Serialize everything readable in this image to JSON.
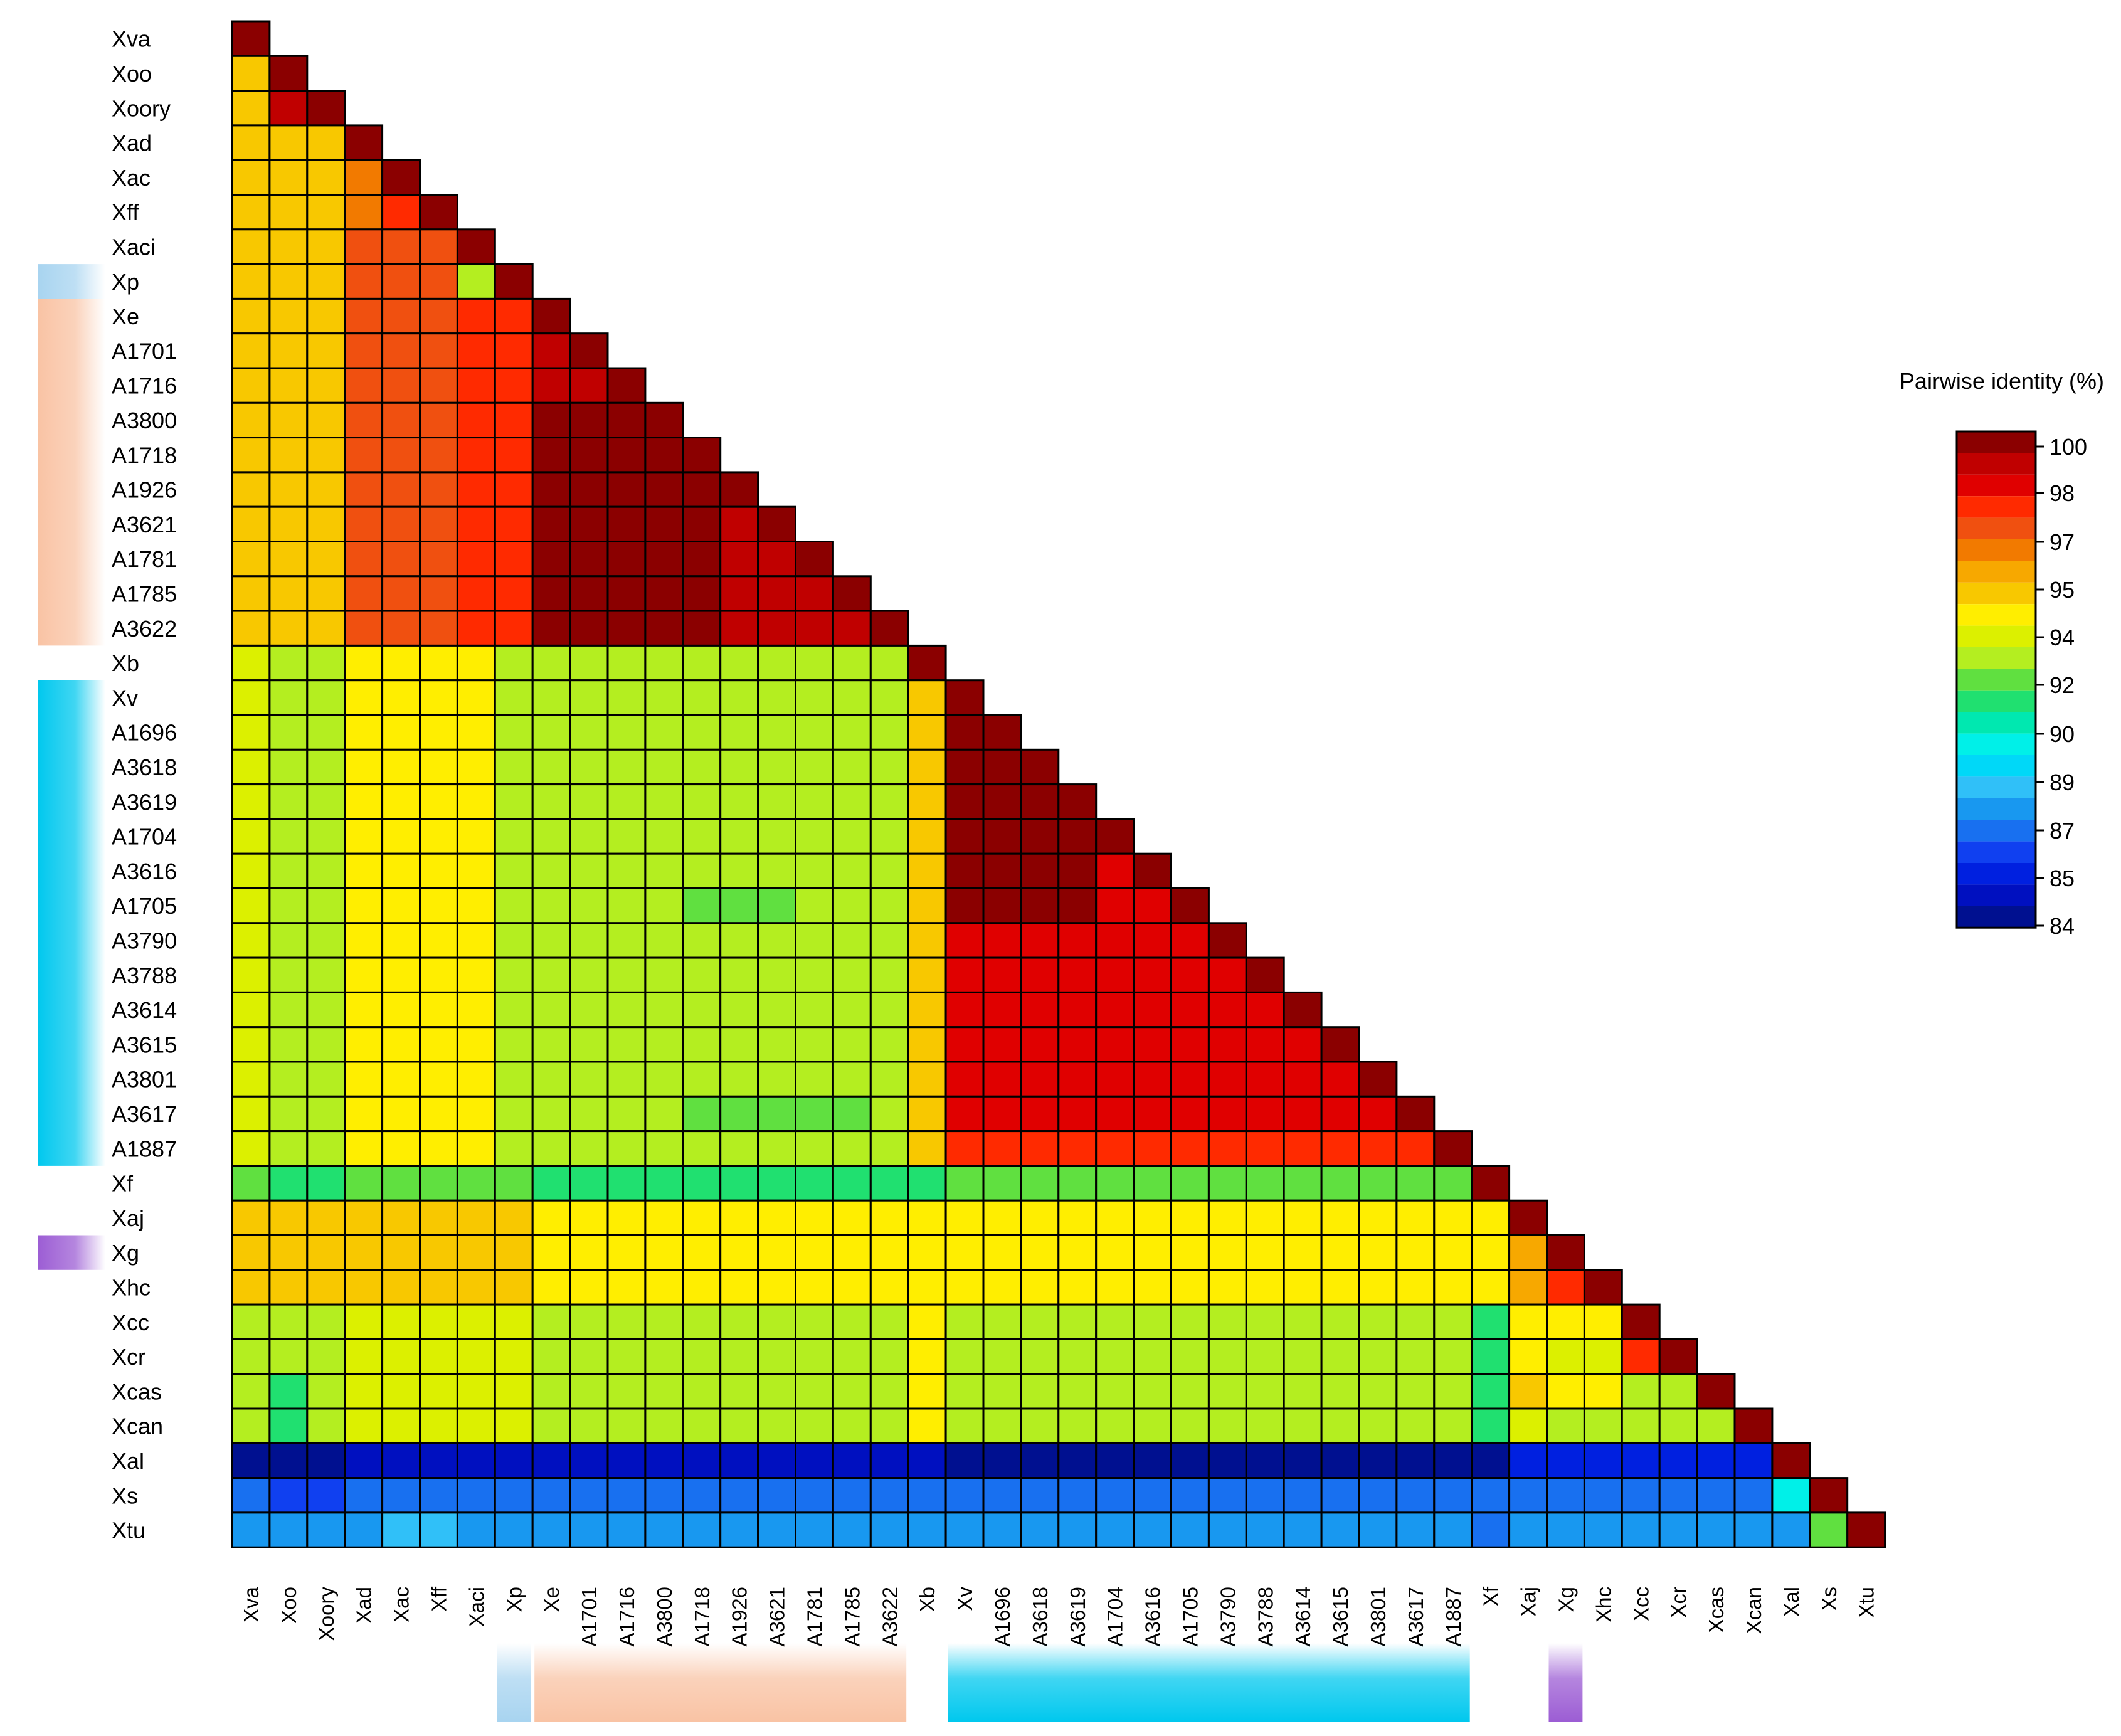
{
  "chart_data": {
    "type": "heatmap",
    "title": "",
    "xlabel": "",
    "ylabel": "",
    "labels": [
      "Xva",
      "Xoo",
      "Xoory",
      "Xad",
      "Xac",
      "Xff",
      "Xaci",
      "Xp",
      "Xe",
      "A1701",
      "A1716",
      "A3800",
      "A1718",
      "A1926",
      "A3621",
      "A1781",
      "A1785",
      "A3622",
      "Xb",
      "Xv",
      "A1696",
      "A3618",
      "A3619",
      "A1704",
      "A3616",
      "A1705",
      "A3790",
      "A3788",
      "A3614",
      "A3615",
      "A3801",
      "A3617",
      "A1887",
      "Xf",
      "Xaj",
      "Xg",
      "Xhc",
      "Xcc",
      "Xcr",
      "Xcas",
      "Xcan",
      "Xal",
      "Xs",
      "Xtu"
    ],
    "groups": [
      {
        "from": 7,
        "to": 7,
        "color": "#a8d4f0"
      },
      {
        "from": 8,
        "to": 17,
        "color": "#f9c3a4"
      },
      {
        "from": 19,
        "to": 32,
        "color": "#00c8ee"
      },
      {
        "from": 35,
        "to": 35,
        "color": "#9c5dd4"
      }
    ],
    "triangle": "lower",
    "diagonal": 100,
    "legend": {
      "title": "Pairwise identity (%)",
      "position": "right",
      "ticks": [
        "100",
        "98",
        "97",
        "95",
        "94",
        "92",
        "90",
        "89",
        "87",
        "85",
        "84"
      ],
      "colors": [
        "#8b0000",
        "#c00000",
        "#e00000",
        "#ff2a00",
        "#f05010",
        "#f27a00",
        "#f7a800",
        "#f8c800",
        "#ffee00",
        "#dcf000",
        "#b4ee20",
        "#60e040",
        "#20e070",
        "#00e8b0",
        "#00f0e8",
        "#00d8f8",
        "#30c0f8",
        "#1898f0",
        "#1870f0",
        "#1040f0",
        "#0020e0",
        "#0010c0",
        "#001090"
      ]
    },
    "scale": [
      [
        84.0,
        "#001090"
      ],
      [
        84.5,
        "#0010c0"
      ],
      [
        85.0,
        "#0020e0"
      ],
      [
        86.0,
        "#1040f0"
      ],
      [
        87.0,
        "#1870f0"
      ],
      [
        88.0,
        "#1898f0"
      ],
      [
        88.7,
        "#30c0f8"
      ],
      [
        89.3,
        "#00d8f8"
      ],
      [
        89.8,
        "#00f0e8"
      ],
      [
        90.5,
        "#00e8b0"
      ],
      [
        91.0,
        "#20e070"
      ],
      [
        91.8,
        "#60e040"
      ],
      [
        92.5,
        "#b4ee20"
      ],
      [
        93.2,
        "#dcf000"
      ],
      [
        93.7,
        "#ffee00"
      ],
      [
        94.2,
        "#f8c800"
      ],
      [
        94.7,
        "#f7a800"
      ],
      [
        95.5,
        "#f27a00"
      ],
      [
        96.5,
        "#f05010"
      ],
      [
        97.5,
        "#ff2a00"
      ],
      [
        98.3,
        "#e00000"
      ],
      [
        99.0,
        "#c00000"
      ],
      [
        99.6,
        "#8b0000"
      ]
    ],
    "blocks": [
      {
        "rows": [
          1,
          44
        ],
        "cols": [
          1,
          44
        ],
        "value": 93.0
      },
      {
        "rows": [
          2,
          18
        ],
        "cols": [
          1,
          1
        ],
        "value": 94.5
      },
      {
        "rows": [
          9,
          18
        ],
        "cols": [
          1,
          1
        ],
        "value": 94.2
      },
      {
        "rows": [
          3,
          18
        ],
        "cols": [
          2,
          3
        ],
        "value": 94.2
      },
      {
        "rows": [
          5,
          18
        ],
        "cols": [
          4,
          6
        ],
        "value": 96.5
      },
      {
        "rows": [
          5,
          6
        ],
        "cols": [
          4,
          4
        ],
        "value": 96.3
      },
      {
        "rows": [
          6,
          6
        ],
        "cols": [
          5,
          5
        ],
        "value": 97.8
      },
      {
        "rows": [
          9,
          18
        ],
        "cols": [
          7,
          8
        ],
        "value": 98.0
      },
      {
        "rows": [
          9,
          18
        ],
        "cols": [
          9,
          18
        ],
        "value": 99.3
      },
      {
        "rows": [
          12,
          18
        ],
        "cols": [
          9,
          13
        ],
        "value": 99.7
      },
      {
        "rows": [
          20,
          33
        ],
        "cols": [
          19,
          19
        ],
        "value": 94.5
      },
      {
        "rows": [
          20,
          33
        ],
        "cols": [
          20,
          33
        ],
        "value": 98.5
      },
      {
        "rows": [
          21,
          26
        ],
        "cols": [
          20,
          23
        ],
        "value": 99.7
      },
      {
        "rows": [
          33,
          33
        ],
        "cols": [
          20,
          33
        ],
        "value": 98.0
      },
      {
        "rows": [
          19,
          33
        ],
        "cols": [
          4,
          7
        ],
        "value": 94.0
      },
      {
        "rows": [
          19,
          33
        ],
        "cols": [
          1,
          1
        ],
        "value": 93.2
      },
      {
        "rows": [
          19,
          33
        ],
        "cols": [
          2,
          3
        ],
        "value": 92.8
      },
      {
        "rows": [
          19,
          33
        ],
        "cols": [
          8,
          18
        ],
        "value": 92.8
      },
      {
        "rows": [
          34,
          34
        ],
        "cols": [
          1,
          44
        ],
        "value": 91.8
      },
      {
        "rows": [
          34,
          34
        ],
        "cols": [
          2,
          3
        ],
        "value": 91.2
      },
      {
        "rows": [
          34,
          34
        ],
        "cols": [
          9,
          19
        ],
        "value": 91.3
      },
      {
        "rows": [
          35,
          37
        ],
        "cols": [
          1,
          44
        ],
        "value": 94.0
      },
      {
        "rows": [
          35,
          37
        ],
        "cols": [
          1,
          3
        ],
        "value": 94.4
      },
      {
        "rows": [
          35,
          35
        ],
        "cols": [
          5,
          6
        ],
        "value": 95.0
      },
      {
        "rows": [
          35,
          37
        ],
        "cols": [
          4,
          8
        ],
        "value": 94.2
      },
      {
        "rows": [
          38,
          41
        ],
        "cols": [
          1,
          44
        ],
        "value": 93.0
      },
      {
        "rows": [
          38,
          41
        ],
        "cols": [
          2,
          3
        ],
        "value": 92.5
      },
      {
        "rows": [
          40,
          41
        ],
        "cols": [
          2,
          2
        ],
        "value": 91.2
      },
      {
        "rows": [
          38,
          41
        ],
        "cols": [
          4,
          8
        ],
        "value": 93.5
      },
      {
        "rows": [
          38,
          41
        ],
        "cols": [
          19,
          19
        ],
        "value": 93.7
      },
      {
        "rows": [
          38,
          41
        ],
        "cols": [
          34,
          34
        ],
        "value": 91.2
      },
      {
        "rows": [
          38,
          40
        ],
        "cols": [
          35,
          37
        ],
        "value": 94.0
      },
      {
        "rows": [
          42,
          42
        ],
        "cols": [
          1,
          44
        ],
        "value": 84.8
      },
      {
        "rows": [
          42,
          42
        ],
        "cols": [
          1,
          3
        ],
        "value": 84.2
      },
      {
        "rows": [
          42,
          42
        ],
        "cols": [
          20,
          34
        ],
        "value": 84.3
      },
      {
        "rows": [
          42,
          42
        ],
        "cols": [
          35,
          41
        ],
        "value": 85.5
      },
      {
        "rows": [
          43,
          43
        ],
        "cols": [
          1,
          44
        ],
        "value": 87.8
      },
      {
        "rows": [
          43,
          43
        ],
        "cols": [
          2,
          3
        ],
        "value": 86.5
      },
      {
        "rows": [
          43,
          43
        ],
        "cols": [
          20,
          34
        ],
        "value": 87.2
      },
      {
        "rows": [
          43,
          43
        ],
        "cols": [
          42,
          42
        ],
        "value": 89.8
      },
      {
        "rows": [
          44,
          44
        ],
        "cols": [
          1,
          44
        ],
        "value": 88.3
      },
      {
        "rows": [
          44,
          44
        ],
        "cols": [
          5,
          6
        ],
        "value": 89.0
      },
      {
        "rows": [
          44,
          44
        ],
        "cols": [
          34,
          34
        ],
        "value": 87.5
      },
      {
        "rows": [
          44,
          44
        ],
        "cols": [
          42,
          42
        ],
        "value": 87.5
      },
      {
        "rows": [
          44,
          44
        ],
        "cols": [
          43,
          43
        ],
        "value": 92.0
      }
    ],
    "cells": [
      [
        3,
        2,
        99.0
      ],
      [
        6,
        5,
        97.8
      ],
      [
        35,
        34,
        94.0
      ],
      [
        36,
        35,
        95.3
      ],
      [
        37,
        35,
        95.3
      ],
      [
        37,
        36,
        98.0
      ],
      [
        38,
        35,
        94.0
      ],
      [
        38,
        36,
        93.8
      ],
      [
        38,
        37,
        93.8
      ],
      [
        39,
        35,
        94.0
      ],
      [
        39,
        36,
        93.5
      ],
      [
        39,
        37,
        93.5
      ],
      [
        39,
        38,
        98.0
      ],
      [
        40,
        35,
        94.6
      ],
      [
        41,
        35,
        93.6
      ],
      [
        40,
        38,
        93.0
      ],
      [
        40,
        39,
        93.0
      ],
      [
        41,
        38,
        92.8
      ],
      [
        41,
        39,
        92.8
      ],
      [
        41,
        40,
        92.8
      ],
      [
        43,
        42,
        89.8
      ],
      [
        44,
        42,
        88.0
      ],
      [
        44,
        43,
        92.0
      ],
      [
        26,
        13,
        92.0
      ],
      [
        26,
        14,
        92.0
      ],
      [
        26,
        15,
        92.0
      ],
      [
        32,
        13,
        92.0
      ],
      [
        32,
        14,
        92.0
      ],
      [
        32,
        15,
        92.0
      ],
      [
        32,
        16,
        92.0
      ],
      [
        32,
        17,
        92.0
      ]
    ]
  }
}
